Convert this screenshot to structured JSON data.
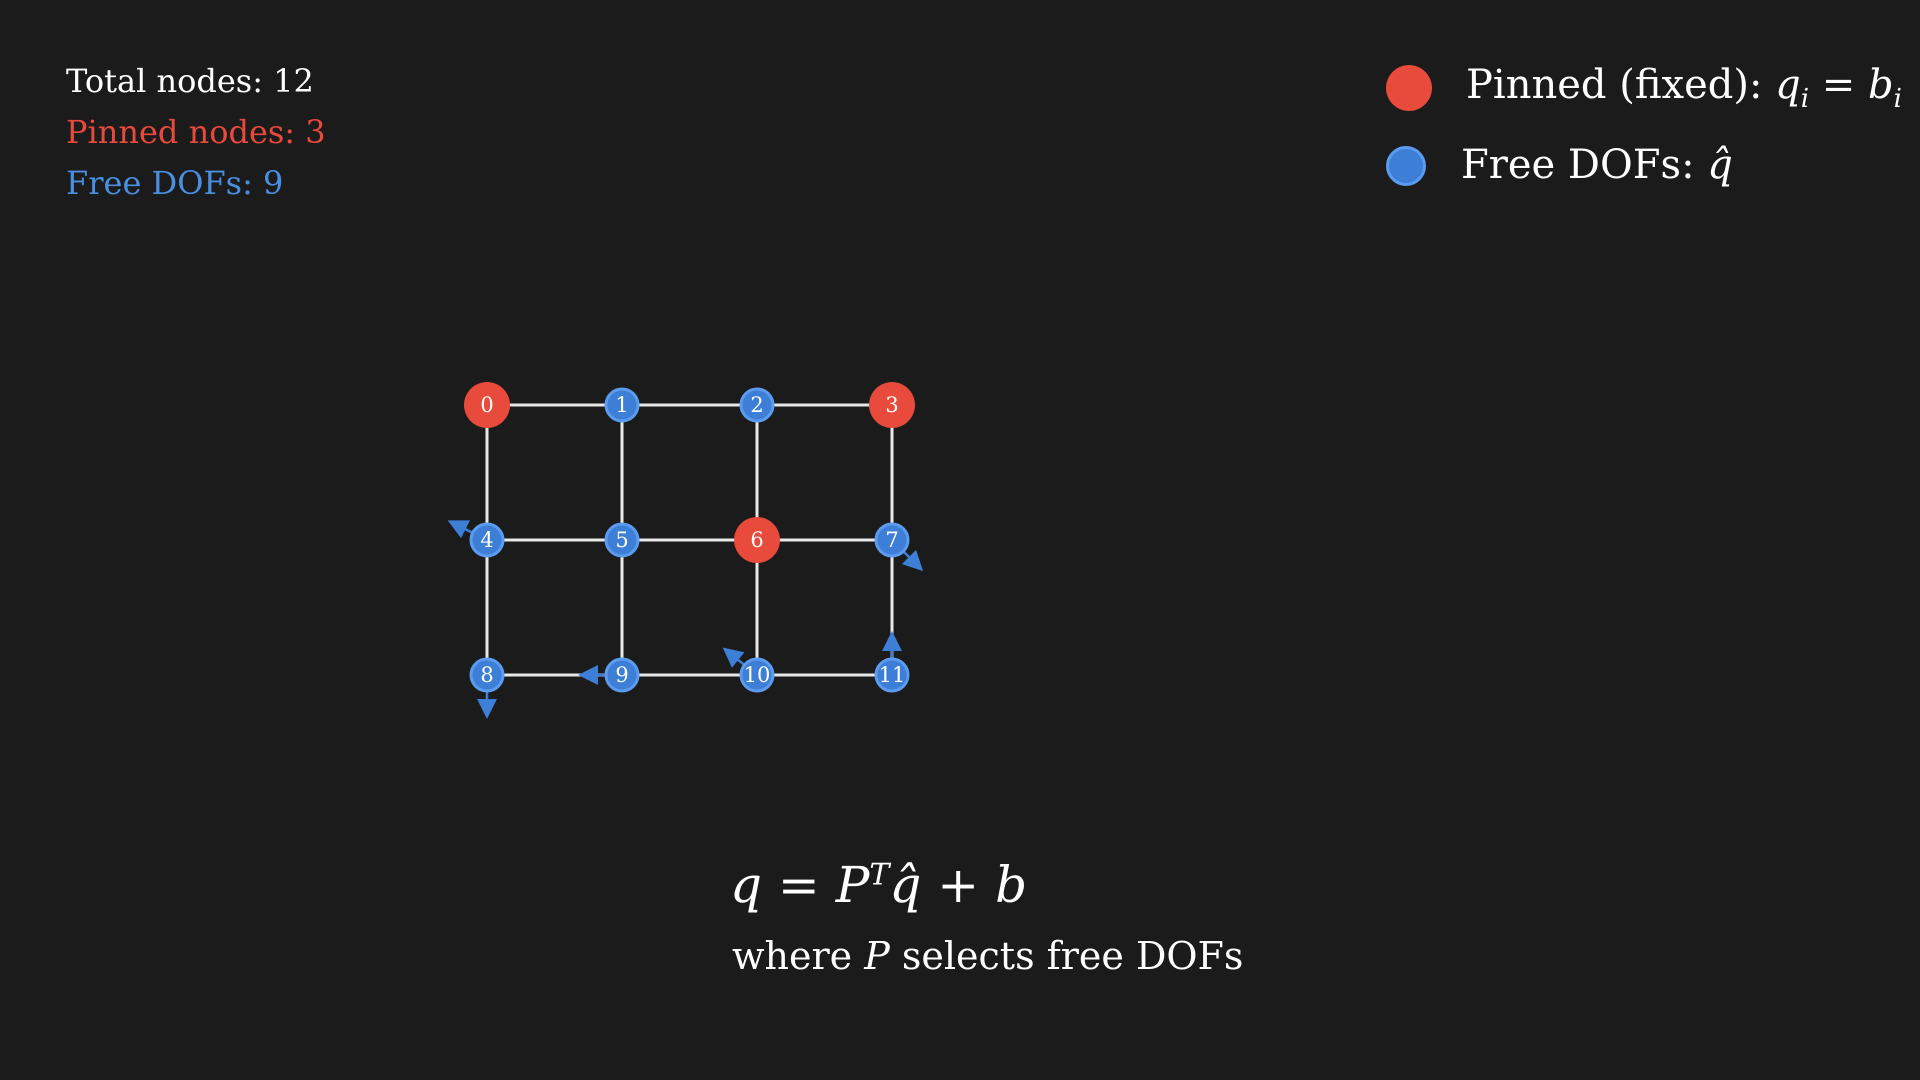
{
  "stats": {
    "total_label": "Total nodes: 12",
    "pinned_label": "Pinned nodes: 3",
    "free_label": "Free DOFs: 9"
  },
  "legend": {
    "pinned_text": "Pinned (fixed):",
    "pinned_math_q": "q",
    "pinned_math_i": "i",
    "pinned_math_eq": " = ",
    "pinned_math_b": "b",
    "free_text": "Free DOFs:",
    "free_math": "q̂"
  },
  "colors": {
    "background": "#1b1b1b",
    "pinned": "#e84a3c",
    "free": "#3d7ed6",
    "free_outline": "#5b9cf0",
    "edge": "#e8e8e8",
    "text": "#ffffff"
  },
  "grid": {
    "rows": 3,
    "cols": 4,
    "nodes": [
      {
        "id": "0",
        "pinned": true
      },
      {
        "id": "1",
        "pinned": false
      },
      {
        "id": "2",
        "pinned": false
      },
      {
        "id": "3",
        "pinned": true
      },
      {
        "id": "4",
        "pinned": false,
        "arrow_dir": [
          -1,
          -0.5
        ]
      },
      {
        "id": "5",
        "pinned": false
      },
      {
        "id": "6",
        "pinned": true
      },
      {
        "id": "7",
        "pinned": false,
        "arrow_dir": [
          1,
          1
        ]
      },
      {
        "id": "8",
        "pinned": false,
        "arrow_dir": [
          0,
          1
        ]
      },
      {
        "id": "9",
        "pinned": false,
        "arrow_dir": [
          -1,
          0
        ]
      },
      {
        "id": "10",
        "pinned": false,
        "arrow_dir": [
          -1,
          -0.8
        ]
      },
      {
        "id": "11",
        "pinned": false,
        "arrow_dir": [
          0,
          -1
        ]
      }
    ]
  },
  "equation": {
    "lhs": "q",
    "eq": " = ",
    "P": "P",
    "T": "T",
    "qhat": "q̂",
    "plus": " + ",
    "b": "b"
  },
  "caption": {
    "where": "where ",
    "P": "P",
    "rest": " selects free DOFs"
  }
}
